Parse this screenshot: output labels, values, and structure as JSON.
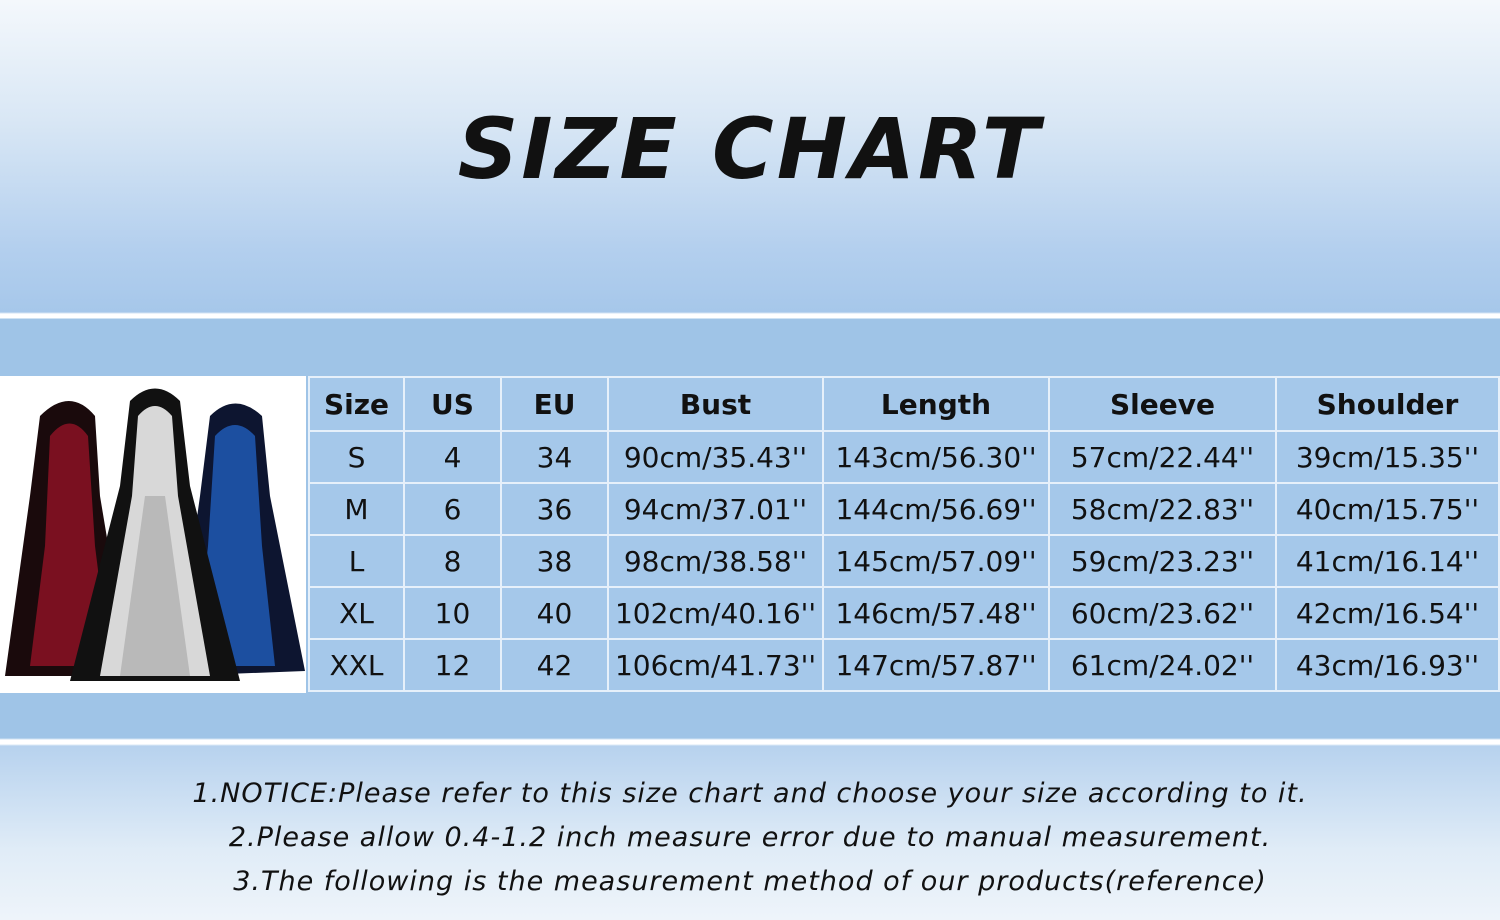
{
  "title": "SIZE CHART",
  "table": {
    "headers": [
      "Size",
      "US",
      "EU",
      "Bust",
      "Length",
      "Sleeve",
      "Shoulder"
    ],
    "rows": [
      [
        "S",
        "4",
        "34",
        "90cm/35.43''",
        "143cm/56.30''",
        "57cm/22.44''",
        "39cm/15.35''"
      ],
      [
        "M",
        "6",
        "36",
        "94cm/37.01''",
        "144cm/56.69''",
        "58cm/22.83''",
        "40cm/15.75''"
      ],
      [
        "L",
        "8",
        "38",
        "98cm/38.58''",
        "145cm/57.09''",
        "59cm/23.23''",
        "41cm/16.14''"
      ],
      [
        "XL",
        "10",
        "40",
        "102cm/40.16''",
        "146cm/57.48''",
        "60cm/23.62''",
        "42cm/16.54''"
      ],
      [
        "XXL",
        "12",
        "42",
        "106cm/41.73''",
        "147cm/57.87''",
        "61cm/24.02''",
        "43cm/16.93''"
      ]
    ]
  },
  "notes": [
    "1.NOTICE:Please refer to this size chart and choose your size according to it.",
    "2.Please allow 0.4-1.2 inch measure error due to manual measurement.",
    "3.The following is the measurement method of our products(reference)"
  ],
  "colors": {
    "band": "#9fc4e7",
    "cell": "#a5c8ea",
    "red_dress": "#7a1020",
    "blue_dress": "#1c4fa0"
  }
}
